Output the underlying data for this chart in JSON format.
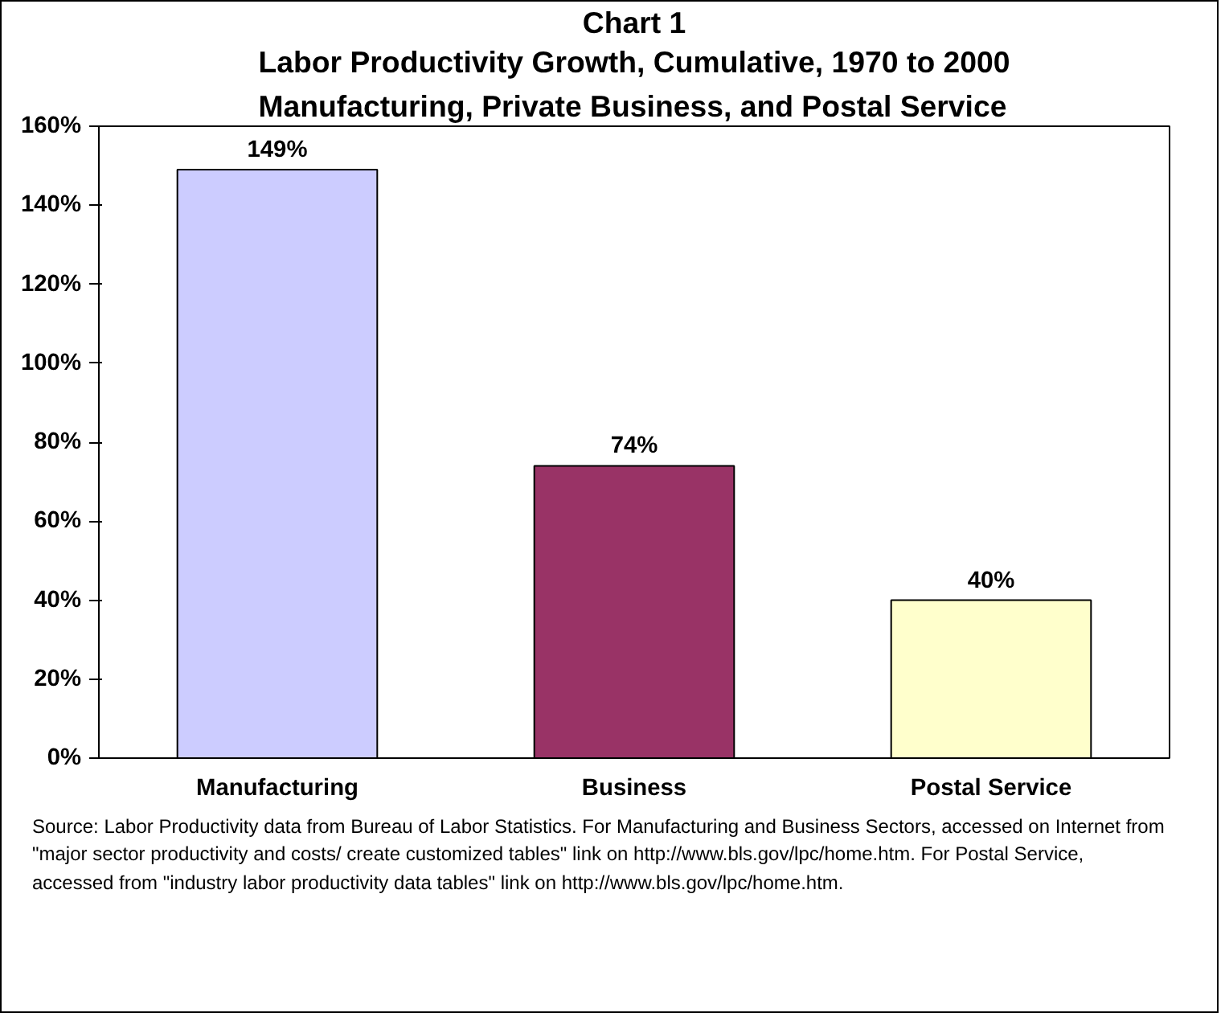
{
  "chart_data": {
    "type": "bar",
    "title": "Chart 1",
    "subtitle": "Labor Productivity Growth, Cumulative, 1970 to 2000\nManufacturing, Private Business, and Postal Service",
    "categories": [
      "Manufacturing",
      "Business",
      "Postal Service"
    ],
    "values": [
      149,
      74,
      40
    ],
    "colors": [
      "#ccccff",
      "#993366",
      "#ffffcc"
    ],
    "value_labels": [
      "149%",
      "74%",
      "40%"
    ],
    "ylim": [
      0,
      160
    ],
    "yticks": [
      {
        "value": 0,
        "label": "0%"
      },
      {
        "value": 20,
        "label": "20%"
      },
      {
        "value": 40,
        "label": "40%"
      },
      {
        "value": 60,
        "label": "60%"
      },
      {
        "value": 80,
        "label": "80%"
      },
      {
        "value": 100,
        "label": "100%"
      },
      {
        "value": 120,
        "label": "120%"
      },
      {
        "value": 140,
        "label": "140%"
      },
      {
        "value": 160,
        "label": "160%"
      }
    ],
    "grid": false,
    "annotations": [
      "Source: Labor Productivity data from Bureau of Labor Statistics.  For Manufacturing and Business Sectors, accessed on Internet from \"major sector productivity and costs/ create customized tables\" link on http://www.bls.gov/lpc/home.htm.  For Postal Service, accessed from \"industry labor productivity data tables\" link on http://www.bls.gov/lpc/home.htm."
    ]
  }
}
